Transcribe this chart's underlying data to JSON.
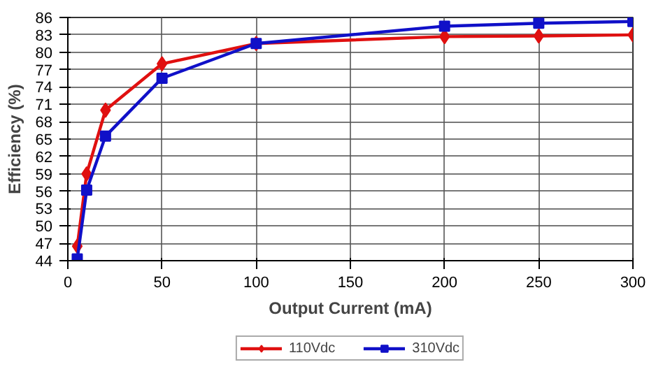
{
  "chart_data": {
    "type": "line",
    "xlabel": "Output Current (mA)",
    "ylabel": "Efficiency (%)",
    "xlim": [
      0,
      300
    ],
    "xticks": [
      0,
      50,
      100,
      150,
      200,
      250,
      300
    ],
    "ylim": [
      44,
      86
    ],
    "yticks": [
      44,
      47,
      50,
      53,
      56,
      59,
      62,
      65,
      68,
      71,
      74,
      77,
      80,
      83,
      86
    ],
    "grid": true,
    "legend": "bottom",
    "line_style": "solid",
    "series": [
      {
        "name": "110Vdc",
        "color": "#e01010",
        "marker": "diamond",
        "x": [
          5,
          10,
          20,
          50,
          100,
          200,
          250,
          300
        ],
        "values": [
          46.5,
          59,
          70,
          78,
          81.5,
          82.7,
          82.8,
          83.0
        ]
      },
      {
        "name": "310Vdc",
        "color": "#1010c8",
        "marker": "square",
        "x": [
          5,
          10,
          20,
          50,
          100,
          200,
          250,
          300
        ],
        "values": [
          44.3,
          56.2,
          65.5,
          75.5,
          81.5,
          84.5,
          85,
          85.3
        ]
      }
    ]
  }
}
